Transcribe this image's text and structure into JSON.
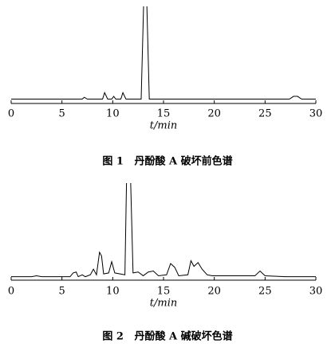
{
  "chart_data": [
    {
      "type": "line",
      "xlabel": "t/min",
      "caption": "图 1   丹酚酸 A 破坏前色谱",
      "color": "#000000",
      "xlim": [
        0,
        30
      ],
      "xticks": [
        0,
        5,
        10,
        15,
        20,
        25,
        30
      ],
      "ylim": [
        0,
        100
      ],
      "x": [
        0,
        7,
        7.2,
        7.5,
        9,
        9.2,
        9.5,
        9.9,
        10.1,
        10.3,
        10.8,
        11,
        11.3,
        12.8,
        13.1,
        13.3,
        13.6,
        27.4,
        27.8,
        28.2,
        28.6,
        30
      ],
      "values": [
        3,
        3,
        5,
        3,
        3,
        10,
        3,
        3,
        6,
        3,
        3,
        10,
        3,
        3,
        130,
        130,
        3,
        3,
        6,
        6,
        3,
        3
      ]
    },
    {
      "type": "line",
      "xlabel": "t/min",
      "caption": "图 2   丹酚酸 A 碱破坏色谱",
      "color": "#000000",
      "xlim": [
        0,
        30
      ],
      "xticks": [
        0,
        5,
        10,
        15,
        20,
        25,
        30
      ],
      "ylim": [
        0,
        100
      ],
      "x": [
        0,
        2,
        2.5,
        3,
        5.8,
        6.1,
        6.4,
        6.6,
        7,
        7.3,
        7.8,
        8.1,
        8.4,
        8.7,
        8.9,
        9.1,
        9.6,
        9.9,
        10.2,
        11.2,
        11.4,
        11.7,
        12,
        12.5,
        13,
        13.5,
        14,
        14.5,
        15.3,
        15.7,
        16.1,
        16.5,
        17.4,
        17.7,
        18,
        18.4,
        18.8,
        19.3,
        19.8,
        24,
        24.5,
        25,
        27,
        30
      ],
      "values": [
        2,
        2,
        3,
        2,
        2,
        6,
        7,
        2,
        4,
        2,
        4,
        10,
        4,
        28,
        24,
        5,
        6,
        18,
        6,
        4,
        130,
        130,
        6,
        7,
        3,
        7,
        8,
        3,
        4,
        16,
        12,
        3,
        4,
        19,
        13,
        17,
        10,
        4,
        3,
        3,
        8,
        3,
        2,
        2
      ]
    }
  ]
}
